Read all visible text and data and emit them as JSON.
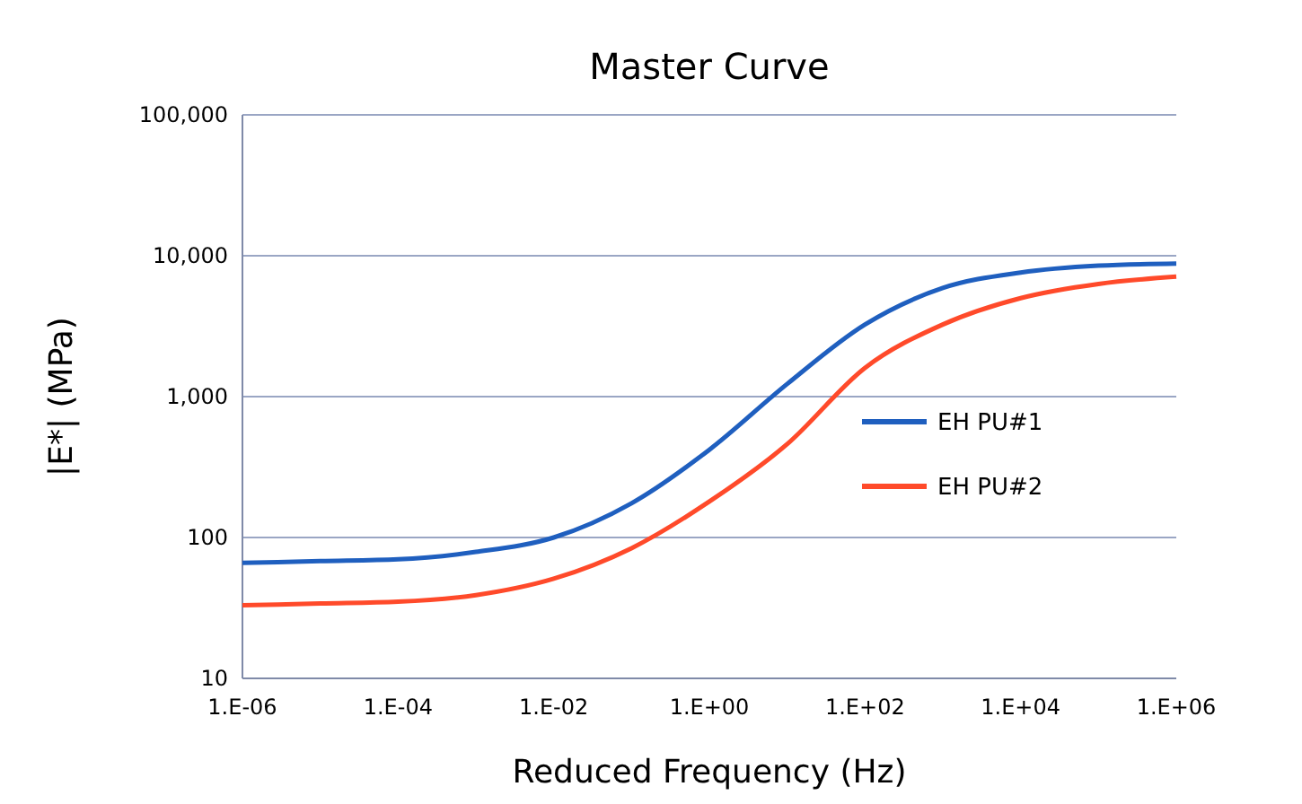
{
  "chart_data": {
    "type": "line",
    "title": "Master Curve",
    "xlabel": "Reduced Frequency (Hz)",
    "ylabel": "|E*| (MPa)",
    "categories": [
      "1.E-06",
      null,
      "1.E-04",
      null,
      "1.E-02",
      null,
      "1.E+00",
      null,
      "1.E+02",
      null,
      "1.E+04",
      null,
      "1.E+06"
    ],
    "series": [
      {
        "name": "EH PU#1",
        "color": "#1f5fbf",
        "values": [
          66,
          68,
          70,
          79,
          100,
          175,
          420,
          1230,
          3250,
          5900,
          7600,
          8500,
          8800
        ]
      },
      {
        "name": "EH PU#2",
        "color": "#ff4a2a",
        "values": [
          33,
          34,
          35,
          39,
          51,
          84,
          180,
          460,
          1600,
          3250,
          5000,
          6300,
          7100
        ]
      }
    ],
    "log": "y",
    "ylim": [
      10,
      100000
    ],
    "yticks": [
      10,
      100,
      {
        "value": 1000,
        "label": "1,000"
      },
      {
        "value": 10000,
        "label": "10,000"
      },
      {
        "value": 100000,
        "label": "100,000"
      }
    ],
    "grid": "y",
    "legend": "right",
    "marker": "none",
    "line_style": "solid"
  }
}
